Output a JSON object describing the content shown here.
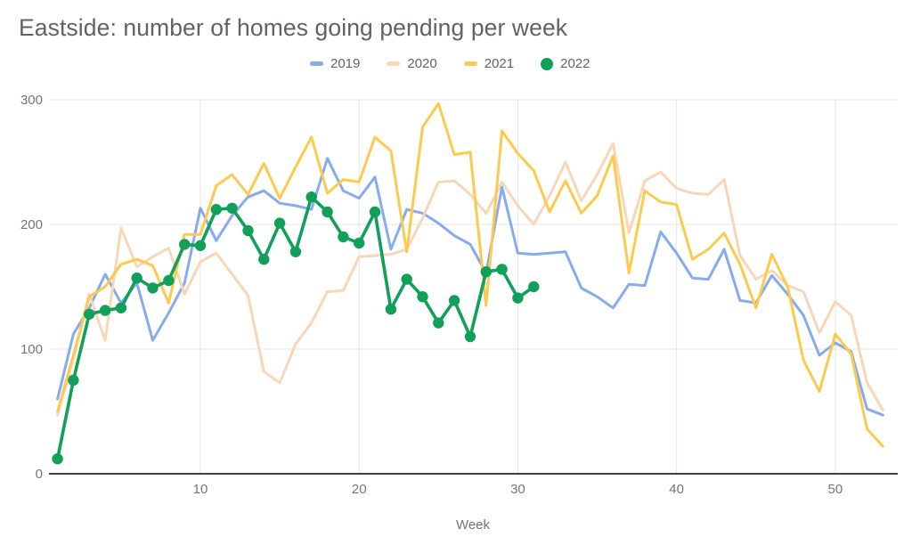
{
  "title": "Eastside: number of homes going pending per week",
  "axes": {
    "x": {
      "label": "Week",
      "ticks": [
        10,
        20,
        30,
        40,
        50
      ]
    },
    "y": {
      "ticks": [
        0,
        100,
        200,
        300
      ]
    }
  },
  "colors": {
    "grid": "#e6e6e6",
    "axis_line": "#3c4043",
    "tick_label": "#757575",
    "title_text": "#5f6368"
  },
  "chart_data": {
    "type": "line",
    "title": "Eastside: number of homes going pending per week",
    "xlabel": "Week",
    "ylabel": "",
    "xlim": [
      1,
      53
    ],
    "ylim": [
      0,
      300
    ],
    "x_ticks": [
      10,
      20,
      30,
      40,
      50
    ],
    "y_ticks": [
      0,
      100,
      200,
      300
    ],
    "grid": true,
    "legend_position": "top",
    "x": [
      1,
      2,
      3,
      4,
      5,
      6,
      7,
      8,
      9,
      10,
      11,
      12,
      13,
      14,
      15,
      16,
      17,
      18,
      19,
      20,
      21,
      22,
      23,
      24,
      25,
      26,
      27,
      28,
      29,
      30,
      31,
      32,
      33,
      34,
      35,
      36,
      37,
      38,
      39,
      40,
      41,
      42,
      43,
      44,
      45,
      46,
      47,
      48,
      49,
      50,
      51,
      52,
      53
    ],
    "series": [
      {
        "name": "2019",
        "color": "#87abef",
        "marker": "none",
        "values": [
          60,
          112,
          133,
          160,
          137,
          153,
          107,
          129,
          153,
          213,
          187,
          207,
          222,
          227,
          217,
          215,
          212,
          253,
          227,
          221,
          238,
          180,
          212,
          209,
          201,
          191,
          184,
          161,
          230,
          177,
          176,
          177,
          178,
          149,
          142,
          133,
          152,
          151,
          194,
          177,
          157,
          156,
          180,
          139,
          137,
          159,
          144,
          127,
          95,
          105,
          98,
          52,
          47
        ]
      },
      {
        "name": "2020",
        "color": "#f8d6b7",
        "marker": "none",
        "values": [
          47,
          92,
          144,
          107,
          197,
          166,
          174,
          181,
          144,
          170,
          177,
          160,
          143,
          82,
          73,
          104,
          121,
          146,
          147,
          174,
          175,
          176,
          180,
          205,
          234,
          235,
          224,
          209,
          234,
          215,
          200,
          223,
          250,
          219,
          240,
          265,
          193,
          235,
          242,
          229,
          225,
          224,
          236,
          175,
          156,
          163,
          151,
          146,
          113,
          138,
          127,
          73,
          51
        ]
      },
      {
        "name": "2021",
        "color": "#fcca4d",
        "marker": "none",
        "values": [
          50,
          95,
          142,
          150,
          168,
          172,
          167,
          137,
          192,
          192,
          231,
          240,
          224,
          249,
          221,
          246,
          270,
          225,
          236,
          234,
          270,
          259,
          178,
          278,
          297,
          256,
          258,
          135,
          275,
          257,
          243,
          210,
          235,
          209,
          223,
          255,
          161,
          227,
          218,
          216,
          172,
          180,
          193,
          168,
          133,
          176,
          150,
          91,
          66,
          112,
          96,
          36,
          22
        ]
      },
      {
        "name": "2022",
        "color": "#11a05a",
        "marker": "circle",
        "values": [
          12,
          75,
          128,
          131,
          133,
          157,
          149,
          155,
          184,
          183,
          212,
          213,
          195,
          172,
          201,
          178,
          222,
          210,
          190,
          185,
          210,
          132,
          156,
          142,
          121,
          139,
          110,
          162,
          164,
          141,
          150
        ]
      }
    ]
  }
}
